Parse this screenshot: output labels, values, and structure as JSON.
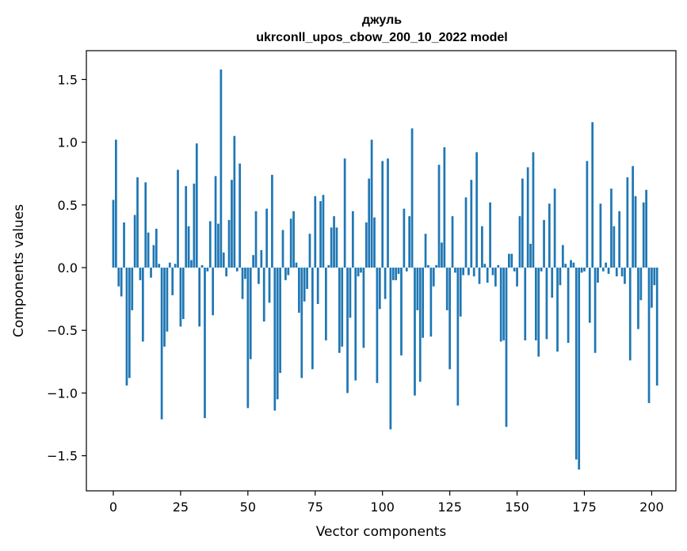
{
  "chart_data": {
    "type": "bar",
    "title": "джуль",
    "subtitle": "ukrconll_upos_cbow_200_10_2022 model",
    "xlabel": "Vector components",
    "ylabel": "Components values",
    "xlim": [
      -10,
      209
    ],
    "ylim": [
      -1.78,
      1.73
    ],
    "xticks": [
      0,
      25,
      50,
      75,
      100,
      125,
      150,
      175,
      200
    ],
    "xtick_labels": [
      "0",
      "25",
      "50",
      "75",
      "100",
      "125",
      "150",
      "175",
      "200"
    ],
    "yticks": [
      -1.5,
      -1.0,
      -0.5,
      0.0,
      0.5,
      1.0,
      1.5
    ],
    "ytick_labels": [
      "−1.5",
      "−1.0",
      "−0.5",
      "0.0",
      "0.5",
      "1.0",
      "1.5"
    ],
    "bar_color": "#1f77b4",
    "grid": false,
    "legend": "none",
    "values": [
      0.54,
      1.02,
      -0.15,
      -0.23,
      0.36,
      -0.94,
      -0.88,
      -0.34,
      0.42,
      0.72,
      -0.1,
      -0.59,
      0.68,
      0.28,
      -0.08,
      0.18,
      0.31,
      0.03,
      -1.21,
      -0.63,
      -0.51,
      0.04,
      -0.22,
      0.03,
      0.78,
      -0.47,
      -0.41,
      0.65,
      0.33,
      0.06,
      0.67,
      0.99,
      -0.47,
      0.02,
      -1.2,
      -0.03,
      0.37,
      -0.38,
      0.73,
      0.35,
      1.58,
      0.12,
      -0.07,
      0.38,
      0.7,
      1.05,
      -0.03,
      0.83,
      -0.25,
      -0.09,
      -1.12,
      -0.73,
      0.1,
      0.45,
      -0.13,
      0.14,
      -0.43,
      0.47,
      -0.28,
      0.74,
      -1.14,
      -1.05,
      -0.84,
      0.3,
      -0.1,
      -0.06,
      0.39,
      0.45,
      0.04,
      -0.36,
      -0.88,
      -0.27,
      -0.17,
      0.27,
      -0.81,
      0.57,
      -0.29,
      0.53,
      0.58,
      -0.58,
      0.02,
      0.32,
      0.41,
      0.32,
      -0.68,
      -0.63,
      0.87,
      -1.0,
      -0.4,
      0.45,
      -0.9,
      -0.07,
      -0.04,
      -0.64,
      0.36,
      0.71,
      1.02,
      0.4,
      -0.92,
      -0.33,
      0.85,
      -0.25,
      0.87,
      -1.29,
      -0.1,
      -0.1,
      -0.05,
      -0.7,
      0.47,
      -0.03,
      0.41,
      1.11,
      -1.02,
      -0.34,
      -0.91,
      -0.56,
      0.27,
      0.02,
      -0.55,
      -0.15,
      0.02,
      0.82,
      0.2,
      0.96,
      -0.34,
      -0.81,
      0.41,
      -0.04,
      -1.1,
      -0.39,
      -0.06,
      0.56,
      -0.06,
      0.7,
      -0.07,
      0.92,
      -0.13,
      0.33,
      0.03,
      -0.12,
      0.52,
      -0.06,
      -0.15,
      0.02,
      -0.59,
      -0.58,
      -1.27,
      0.11,
      0.11,
      -0.03,
      -0.15,
      0.41,
      0.71,
      -0.58,
      0.8,
      0.19,
      0.92,
      -0.58,
      -0.71,
      -0.03,
      0.38,
      -0.57,
      0.51,
      -0.24,
      0.63,
      -0.67,
      -0.14,
      0.18,
      0.03,
      -0.6,
      0.06,
      0.04,
      -1.53,
      -1.61,
      -0.04,
      -0.03,
      0.85,
      -0.44,
      1.16,
      -0.68,
      -0.12,
      0.51,
      -0.03,
      0.04,
      -0.05,
      0.63,
      0.33,
      -0.07,
      0.45,
      -0.07,
      -0.13,
      0.72,
      -0.74,
      0.81,
      0.57,
      -0.49,
      -0.26,
      0.52,
      0.62,
      -1.08,
      -0.32,
      -0.14,
      -0.94
    ]
  }
}
